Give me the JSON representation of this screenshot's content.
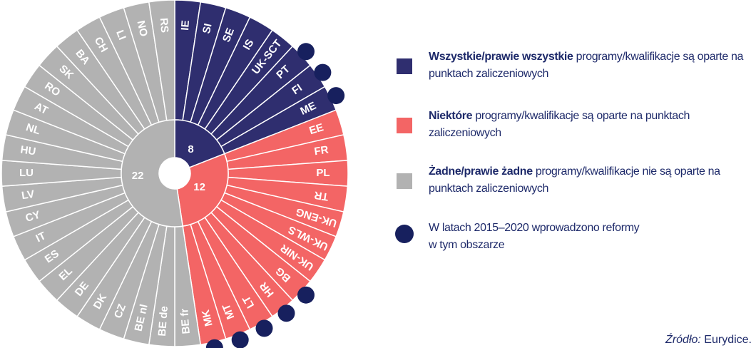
{
  "chart_data": {
    "type": "radial",
    "categories": [
      "IE",
      "SI",
      "SE",
      "IS",
      "UK-SCT",
      "PT",
      "FI",
      "ME",
      "EE",
      "FR",
      "PL",
      "TR",
      "UK-ENG",
      "UK-WLS",
      "UK-NIR",
      "BG",
      "HR",
      "LT",
      "MT",
      "MK",
      "BE fr",
      "BE de",
      "BE nl",
      "CZ",
      "DK",
      "DE",
      "EL",
      "ES",
      "IT",
      "CY",
      "LV",
      "LU",
      "HU",
      "NL",
      "AT",
      "RO",
      "SK",
      "BA",
      "CH",
      "LI",
      "NO",
      "RS"
    ],
    "group": [
      0,
      0,
      0,
      0,
      0,
      0,
      0,
      0,
      1,
      1,
      1,
      1,
      1,
      1,
      1,
      1,
      1,
      1,
      1,
      1,
      2,
      2,
      2,
      2,
      2,
      2,
      2,
      2,
      2,
      2,
      2,
      2,
      2,
      2,
      2,
      2,
      2,
      2,
      2,
      2,
      2,
      2
    ],
    "reform": [
      false,
      false,
      false,
      false,
      false,
      true,
      true,
      true,
      false,
      false,
      false,
      false,
      false,
      false,
      false,
      true,
      true,
      true,
      true,
      true,
      false,
      false,
      false,
      false,
      false,
      false,
      false,
      false,
      false,
      false,
      false,
      false,
      false,
      false,
      false,
      false,
      false,
      false,
      false,
      false,
      false,
      false
    ],
    "groups": [
      {
        "bold": "Wszystkie/prawie wszystkie",
        "text": "programy/kwalifikacje są oparte na punktach zaliczeniowych",
        "color": "#2f2e6f",
        "count": 8
      },
      {
        "bold": "Niektóre",
        "text": "programy/kwalifikacje są oparte na punktach zaliczeniowych",
        "color": "#f36565",
        "count": 12
      },
      {
        "bold": "Żadne/prawie żadne",
        "text": "programy/kwalifikacje nie są oparte na punktach zaliczeniowych",
        "color": "#b2b2b2",
        "count": 22
      }
    ],
    "reform_label": "W latach 2015–2020 wprowadzono reformy w tym obszarze",
    "reform_color": "#17205e",
    "source_label": "Źródło:",
    "source": "Eurydice."
  }
}
